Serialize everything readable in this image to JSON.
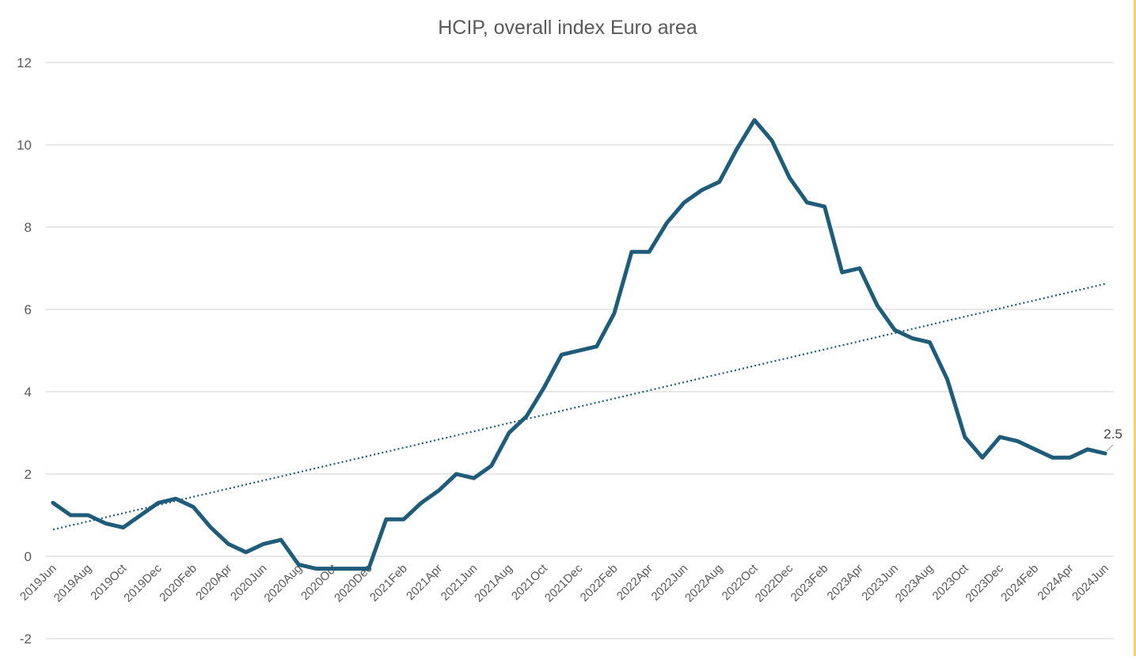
{
  "chart_data": {
    "type": "line",
    "title": "HCIP, overall index Euro area",
    "xlabel": "",
    "ylabel": "",
    "ylim": [
      -2,
      12
    ],
    "yticks": [
      -2,
      0,
      2,
      4,
      6,
      8,
      10,
      12
    ],
    "grid": true,
    "legend": "none",
    "x": [
      "2019Jun",
      "2019Jul",
      "2019Aug",
      "2019Sep",
      "2019Oct",
      "2019Nov",
      "2019Dec",
      "2020Jan",
      "2020Feb",
      "2020Mar",
      "2020Apr",
      "2020May",
      "2020Jun",
      "2020Jul",
      "2020Aug",
      "2020Sep",
      "2020Oct",
      "2020Nov",
      "2020Dec",
      "2021Jan",
      "2021Feb",
      "2021Mar",
      "2021Apr",
      "2021May",
      "2021Jun",
      "2021Jul",
      "2021Aug",
      "2021Sep",
      "2021Oct",
      "2021Nov",
      "2021Dec",
      "2022Jan",
      "2022Feb",
      "2022Mar",
      "2022Apr",
      "2022May",
      "2022Jun",
      "2022Jul",
      "2022Aug",
      "2022Sep",
      "2022Oct",
      "2022Nov",
      "2022Dec",
      "2023Jan",
      "2023Feb",
      "2023Mar",
      "2023Apr",
      "2023May",
      "2023Jun",
      "2023Jul",
      "2023Aug",
      "2023Sep",
      "2023Oct",
      "2023Nov",
      "2023Dec",
      "2024Jan",
      "2024Feb",
      "2024Mar",
      "2024Apr",
      "2024May",
      "2024Jun"
    ],
    "x_tick_labels": [
      "2019Jun",
      "2019Aug",
      "2019Oct",
      "2019Dec",
      "2020Feb",
      "2020Apr",
      "2020Jun",
      "2020Aug",
      "2020Oct",
      "2020Dec",
      "2021Feb",
      "2021Apr",
      "2021Jun",
      "2021Aug",
      "2021Oct",
      "2021Dec",
      "2022Feb",
      "2022Apr",
      "2022Jun",
      "2022Aug",
      "2022Oct",
      "2022Dec",
      "2023Feb",
      "2023Apr",
      "2023Jun",
      "2023Aug",
      "2023Oct",
      "2023Dec",
      "2024Feb",
      "2024Apr",
      "2024Jun"
    ],
    "series": [
      {
        "values": [
          1.3,
          1.0,
          1.0,
          0.8,
          0.7,
          1.0,
          1.3,
          1.4,
          1.2,
          0.7,
          0.3,
          0.1,
          0.3,
          0.4,
          -0.2,
          -0.3,
          -0.3,
          -0.3,
          -0.3,
          0.9,
          0.9,
          1.3,
          1.6,
          2.0,
          1.9,
          2.2,
          3.0,
          3.4,
          4.1,
          4.9,
          5.0,
          5.1,
          5.9,
          7.4,
          7.4,
          8.1,
          8.6,
          8.9,
          9.1,
          9.9,
          10.6,
          10.1,
          9.2,
          8.6,
          8.5,
          6.9,
          7.0,
          6.1,
          5.5,
          5.3,
          5.2,
          4.3,
          2.9,
          2.4,
          2.9,
          2.8,
          2.6,
          2.4,
          2.4,
          2.6,
          2.5
        ],
        "color": "#1f5c7a",
        "trendline": {
          "type": "linear",
          "style": "dotted",
          "start_value": 0.65,
          "end_value": 6.62
        }
      }
    ],
    "annotations": [
      {
        "label": "2.5",
        "x": "2024Jun",
        "y": 2.5
      }
    ]
  }
}
